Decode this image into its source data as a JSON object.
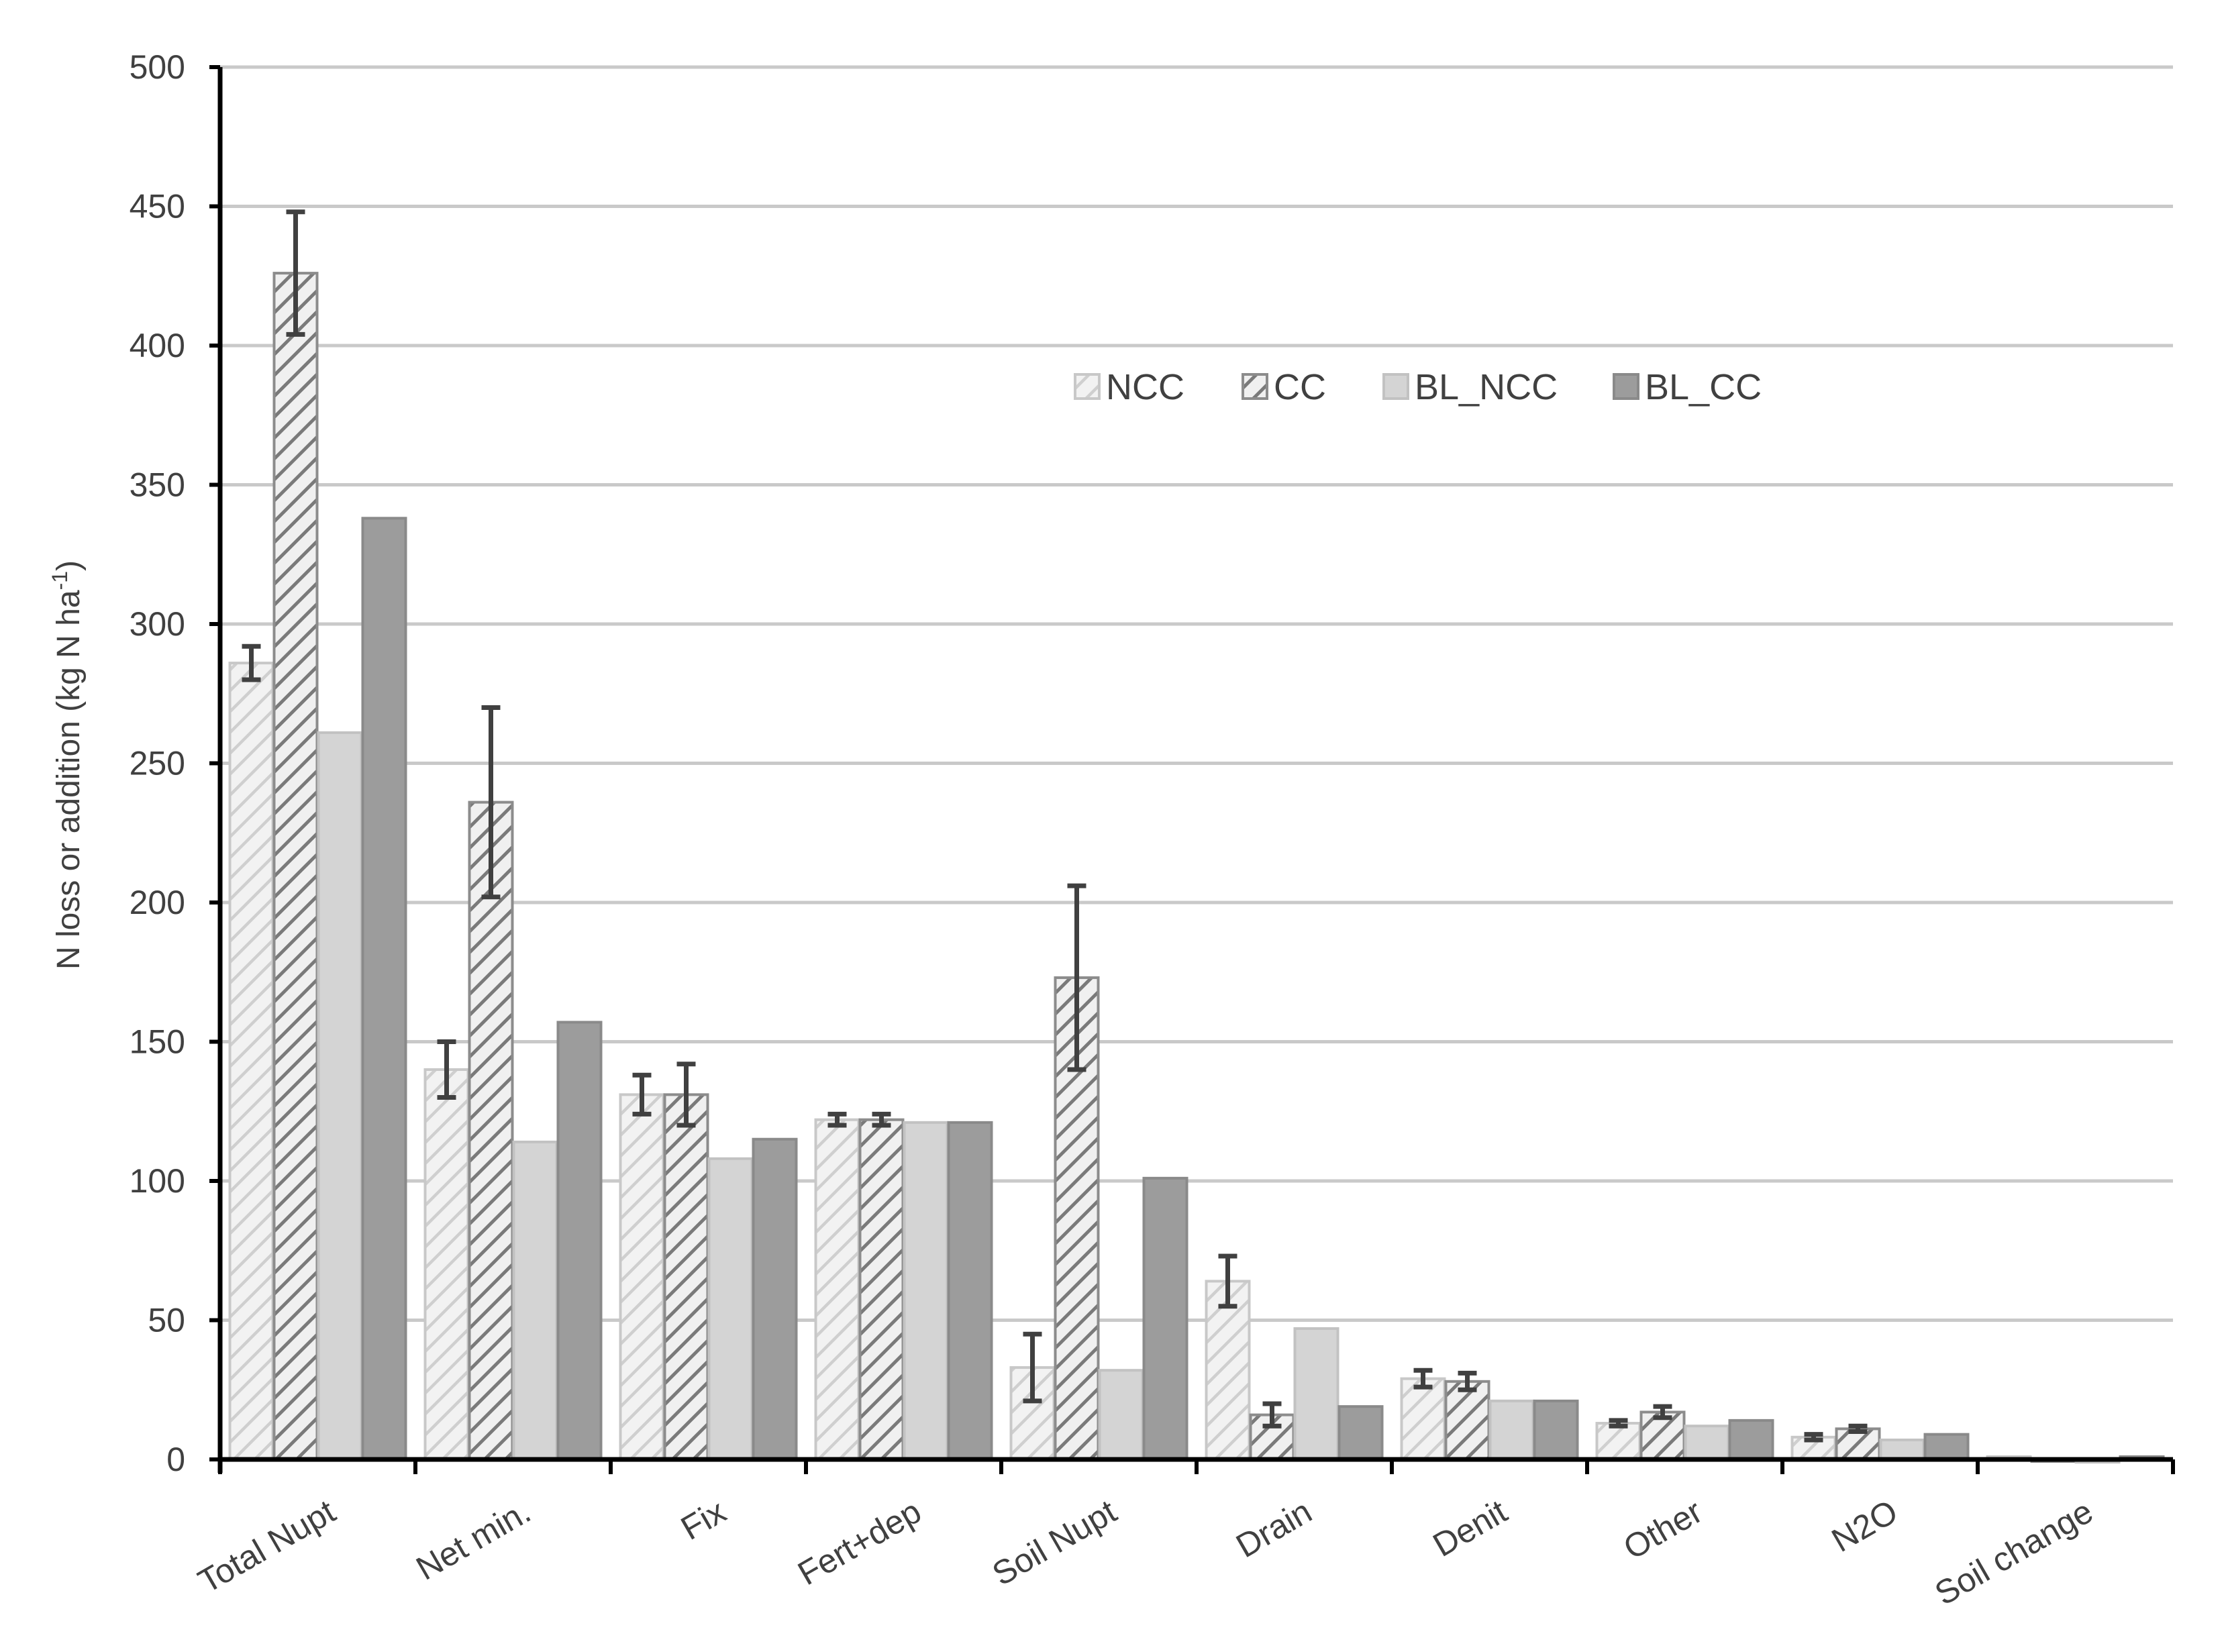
{
  "chart_data": {
    "type": "bar",
    "title": "",
    "xlabel": "",
    "ylabel": "N loss or addition (kg N ha",
    "ylabel_superscript": "-1",
    "ylabel_suffix": ")",
    "ylim": [
      0,
      500
    ],
    "yticks": [
      0,
      50,
      100,
      150,
      200,
      250,
      300,
      350,
      400,
      450,
      500
    ],
    "grid": true,
    "legend_position": "top-center",
    "categories": [
      "Total Nupt",
      "Net min.",
      "Fix",
      "Fert+dep",
      "Soil Nupt",
      "Drain",
      "Denit",
      "Other",
      "N2O",
      "Soil change"
    ],
    "series": [
      {
        "name": "NCC",
        "pattern": "light-hatch",
        "color": "#e6e6e6",
        "edge": "#c8c8c8",
        "values": [
          286,
          140,
          131,
          122,
          33,
          64,
          29,
          13,
          8,
          1
        ],
        "errors": [
          6,
          10,
          7,
          2,
          12,
          9,
          3,
          1,
          1,
          0
        ]
      },
      {
        "name": "CC",
        "pattern": "dark-hatch",
        "color": "#e0e0e0",
        "edge": "#8c8c8c",
        "values": [
          426,
          236,
          131,
          122,
          173,
          16,
          28,
          17,
          11,
          0
        ],
        "errors": [
          22,
          34,
          11,
          2,
          33,
          4,
          3,
          2,
          1,
          0
        ]
      },
      {
        "name": "BL_NCC",
        "pattern": "solid",
        "color": "#d4d4d4",
        "edge": "#c2c2c2",
        "values": [
          261,
          114,
          108,
          121,
          32,
          47,
          21,
          12,
          7,
          -1
        ]
      },
      {
        "name": "BL_CC",
        "pattern": "solid",
        "color": "#9c9c9c",
        "edge": "#8a8a8a",
        "values": [
          338,
          157,
          115,
          121,
          101,
          19,
          21,
          14,
          9,
          1
        ]
      }
    ]
  }
}
